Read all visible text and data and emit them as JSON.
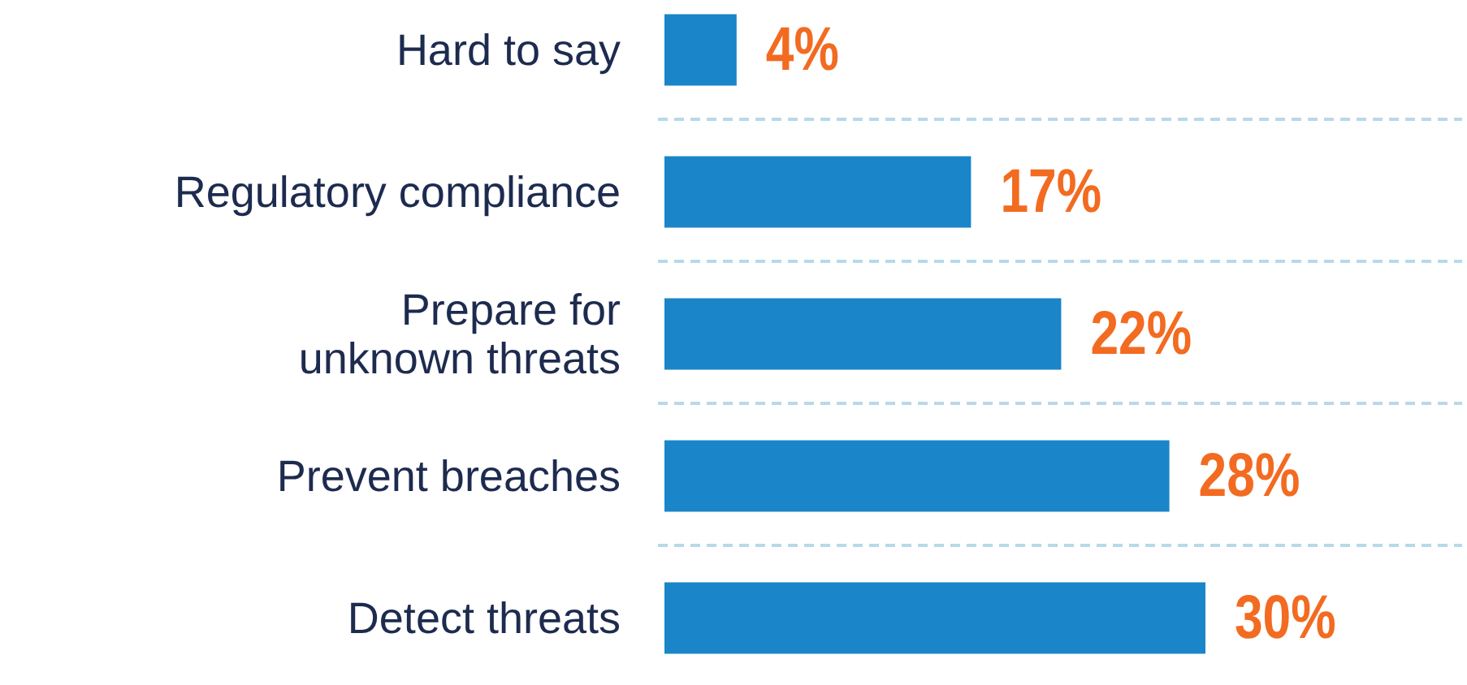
{
  "chart_data": {
    "type": "bar",
    "orientation": "horizontal",
    "categories": [
      "Hard to say",
      "Regulatory compliance",
      "Prepare for unknown threats",
      "Prevent breaches",
      "Detect threats"
    ],
    "values": [
      4,
      17,
      22,
      28,
      30
    ],
    "color": "#1a85c8",
    "value_labels": [
      "4%",
      "17%",
      "22%",
      "28%",
      "30%"
    ],
    "grid": "y"
  }
}
